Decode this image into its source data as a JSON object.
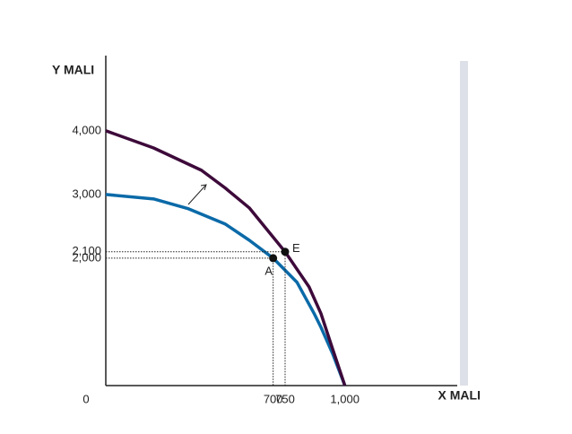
{
  "chart_data": {
    "type": "line",
    "x_label": "X MALI",
    "y_label": "Y MALI",
    "xlim": [
      0,
      1470
    ],
    "ylim": [
      0,
      5180
    ],
    "xticks": [
      0,
      700,
      750,
      {
        "value": 1000,
        "label": "1,000"
      }
    ],
    "yticks": [
      {
        "value": 2000,
        "label": "2,000"
      },
      {
        "value": 2100,
        "label": "2,100"
      },
      {
        "value": 3000,
        "label": "3,000"
      },
      {
        "value": 4000,
        "label": "4,000"
      }
    ],
    "series": [
      {
        "color": "#0b6aa8",
        "x": [
          0,
          200,
          346,
          500,
          600,
          700,
          800,
          872,
          900,
          950,
          1000
        ],
        "values": [
          3000,
          2930,
          2775,
          2535,
          2282,
          2000,
          1620,
          1127,
          915,
          490,
          0
        ]
      },
      {
        "color": "#3d0a3a",
        "x": [
          0,
          200,
          400,
          500,
          600,
          750,
          850,
          900,
          950,
          1000
        ],
        "values": [
          4000,
          3730,
          3380,
          3100,
          2790,
          2100,
          1550,
          1130,
          560,
          0
        ]
      }
    ],
    "points": [
      {
        "label": "A",
        "x": 700,
        "y": 2000
      },
      {
        "label": "E",
        "x": 750,
        "y": 2100
      }
    ]
  }
}
